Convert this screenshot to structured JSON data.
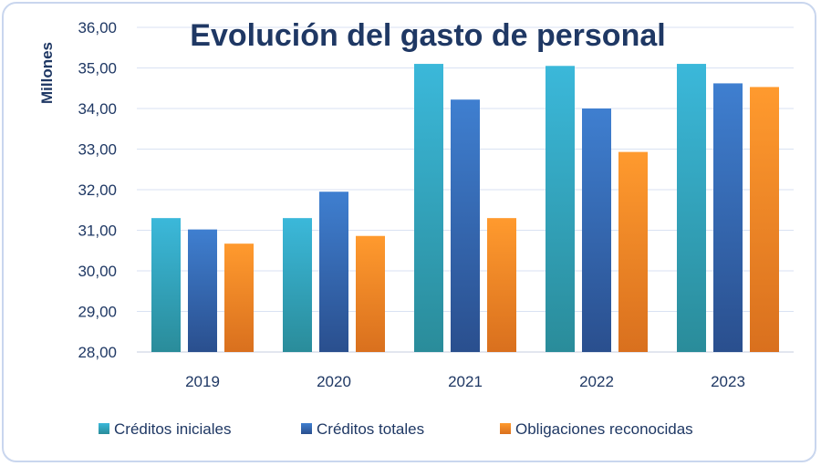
{
  "chart_data": {
    "type": "bar",
    "title": "Evolución del gasto de personal",
    "ylabel": "Millones",
    "xlabel": "",
    "categories": [
      "2019",
      "2020",
      "2021",
      "2022",
      "2023"
    ],
    "ylim": [
      28,
      36
    ],
    "yticks": [
      "28,00",
      "29,00",
      "30,00",
      "31,00",
      "32,00",
      "33,00",
      "34,00",
      "35,00",
      "36,00"
    ],
    "yticks_values": [
      28,
      29,
      30,
      31,
      32,
      33,
      34,
      35,
      36
    ],
    "grid": true,
    "legend_position": "bottom",
    "series": [
      {
        "name": "Créditos iniciales",
        "values": [
          31.3,
          31.3,
          35.1,
          35.05,
          35.1
        ],
        "color_top": "#3bb8da",
        "color_bottom": "#2a8c9a"
      },
      {
        "name": "Créditos totales",
        "values": [
          31.02,
          31.95,
          34.22,
          34.0,
          34.62
        ],
        "color_top": "#3f7fd0",
        "color_bottom": "#2a4f8e"
      },
      {
        "name": "Obligaciones reconocidas",
        "values": [
          30.67,
          30.86,
          31.3,
          32.93,
          34.53
        ],
        "color_top": "#ff9a2e",
        "color_bottom": "#d9701e"
      }
    ]
  }
}
